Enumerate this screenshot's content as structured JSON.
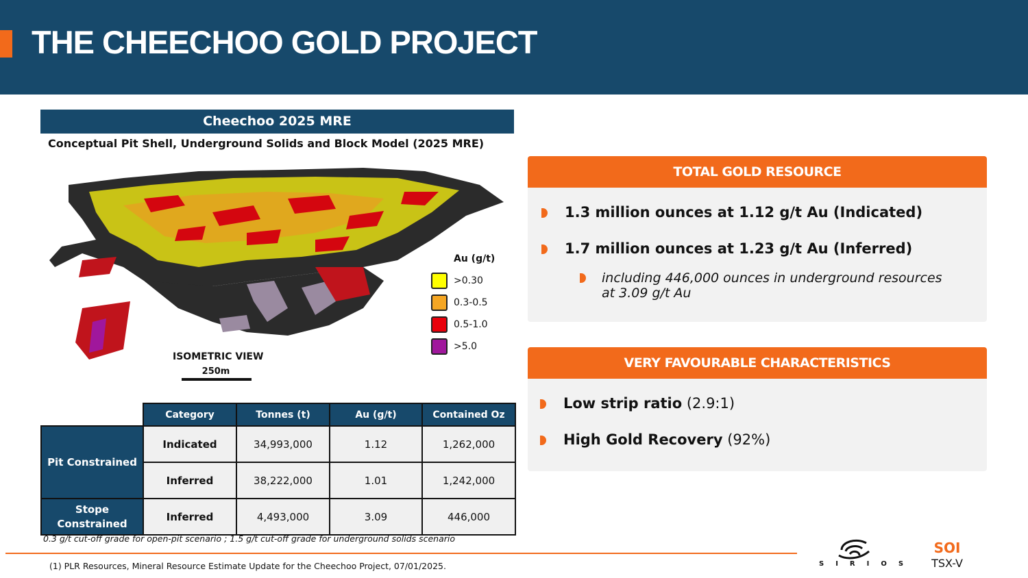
{
  "header": {
    "title": "THE CHEECHOO GOLD PROJECT"
  },
  "mre": {
    "title": "Cheechoo 2025 MRE",
    "subtitle": "Conceptual Pit Shell, Underground Solids and Block Model (2025 MRE)",
    "figure": {
      "legend_title": "Au (g/t)",
      "legend": [
        {
          "label": ">0.30",
          "color": "#ffff00"
        },
        {
          "label": "0.3-0.5",
          "color": "#f5a623"
        },
        {
          "label": "0.5-1.0",
          "color": "#e8000b"
        },
        {
          "label": ">5.0",
          "color": "#a0179c"
        }
      ],
      "view_label": "ISOMETRIC VIEW",
      "scale_label": "250m"
    },
    "table": {
      "columns": [
        "Category",
        "Tonnes (t)",
        "Au (g/t)",
        "Contained Oz"
      ],
      "groups": [
        {
          "name": "Pit Constrained",
          "rows": [
            [
              "Indicated",
              "34,993,000",
              "1.12",
              "1,262,000"
            ],
            [
              "Inferred",
              "38,222,000",
              "1.01",
              "1,242,000"
            ]
          ]
        },
        {
          "name": "Stope Constrained",
          "rows": [
            [
              "Inferred",
              "4,493,000",
              "3.09",
              "446,000"
            ]
          ]
        }
      ]
    },
    "note": "0.3 g/t cut-off grade for open-pit scenario ; 1.5 g/t cut-off grade for underground solids scenario"
  },
  "resource": {
    "title": "TOTAL GOLD RESOURCE",
    "bullets": [
      "1.3 million ounces at 1.12 g/t Au (Indicated)",
      "1.7 million ounces at 1.23 g/t Au (Inferred)"
    ],
    "sub_bullet": "including 446,000 ounces in underground resources at 3.09 g/t Au"
  },
  "characteristics": {
    "title": "VERY FAVOURABLE CHARACTERISTICS",
    "items": [
      {
        "bold": "Low strip ratio",
        "rest": "(2.9:1)"
      },
      {
        "bold": "High Gold Recovery",
        "rest": "(92%)"
      }
    ]
  },
  "footer": {
    "source": "(1) PLR Resources, Mineral Resource Estimate Update for the Cheechoo Project, 07/01/2025.",
    "logo": "SIRIOS",
    "ticker": "SOI",
    "exchange": "TSX-V"
  }
}
